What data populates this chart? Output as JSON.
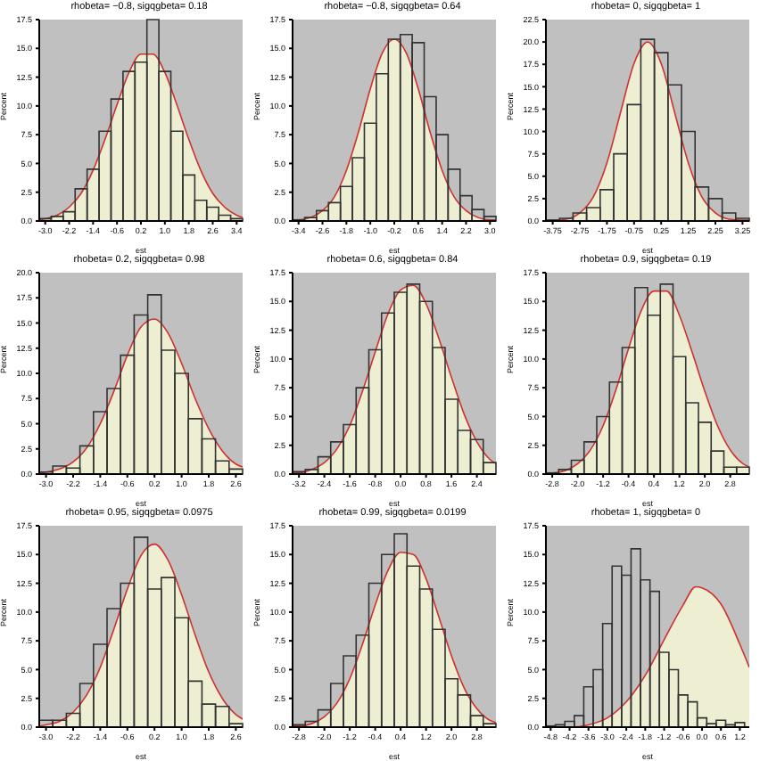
{
  "chart_data": [
    {
      "type": "histogram",
      "title": "rhobeta= −0.8, sigqgbeta= 0.18",
      "xlabel": "est",
      "ylabel": "Percent",
      "bins": [
        -3.2,
        -2.8,
        -2.4,
        -2,
        -1.6,
        -1.2,
        -0.8,
        -0.4,
        0,
        0.4,
        0.8,
        1.2,
        1.6,
        2,
        2.4,
        2.8,
        3.2,
        3.6
      ],
      "xlim": [
        -3.2,
        3.6
      ],
      "xticks": [
        {
          "value": -3,
          "label": "-3.0"
        },
        {
          "value": -2.2,
          "label": "-2.2"
        },
        {
          "value": -1.4,
          "label": "-1.4"
        },
        {
          "value": -0.6,
          "label": "-0.6"
        },
        {
          "value": 0.2,
          "label": "0.2"
        },
        {
          "value": 1,
          "label": "1.0"
        },
        {
          "value": 1.8,
          "label": "1.8"
        },
        {
          "value": 2.6,
          "label": "2.6"
        },
        {
          "value": 3.4,
          "label": "3.4"
        }
      ],
      "ylim": [
        0,
        17.5
      ],
      "yticks": [
        {
          "value": 0,
          "label": "0.0"
        },
        {
          "value": 2.5,
          "label": "2.5"
        },
        {
          "value": 5,
          "label": "5.0"
        },
        {
          "value": 7.5,
          "label": "7.5"
        },
        {
          "value": 10,
          "label": "10.0"
        },
        {
          "value": 12.5,
          "label": "12.5"
        },
        {
          "value": 15,
          "label": "15.0"
        },
        {
          "value": 17.5,
          "label": "17.5"
        }
      ],
      "series": [
        {
          "type": "area",
          "color": "#d03030",
          "x": [
            -3.2,
            -3,
            -2.6,
            -2.2,
            -1.8,
            -1.4,
            -1,
            -0.6,
            -0.2,
            0.2,
            0.6,
            1,
            1.4,
            1.8,
            2.2,
            2.6,
            3,
            3.4,
            3.6
          ],
          "values": [
            0.1,
            0.2,
            0.5,
            1.2,
            2.4,
            4.4,
            7.1,
            10.1,
            12.9,
            14.5,
            14.5,
            12.9,
            10.1,
            7.1,
            4.4,
            2.4,
            1.2,
            0.5,
            0.3
          ]
        },
        {
          "type": "histogram",
          "color": "#333333",
          "values": [
            0.2,
            0.4,
            0.8,
            2.8,
            4.5,
            7.8,
            10.6,
            13,
            13.8,
            17.5,
            13,
            7.8,
            4,
            1.8,
            1.2,
            0.5,
            0.2
          ]
        }
      ]
    },
    {
      "type": "histogram",
      "title": "rhobeta= −0.8, sigqgbeta= 0.64",
      "xlabel": "est",
      "ylabel": "Percent",
      "bins": [
        -3.6,
        -3.2,
        -2.8,
        -2.4,
        -2,
        -1.6,
        -1.2,
        -0.8,
        -0.4,
        0,
        0.4,
        0.8,
        1.2,
        1.6,
        2,
        2.4,
        2.8,
        3.2
      ],
      "xlim": [
        -3.6,
        3.2
      ],
      "xticks": [
        {
          "value": -3.4,
          "label": "-3.4"
        },
        {
          "value": -2.6,
          "label": "-2.6"
        },
        {
          "value": -1.8,
          "label": "-1.8"
        },
        {
          "value": -1,
          "label": "-1.0"
        },
        {
          "value": -0.2,
          "label": "-0.2"
        },
        {
          "value": 0.6,
          "label": "0.6"
        },
        {
          "value": 1.4,
          "label": "1.4"
        },
        {
          "value": 2.2,
          "label": "2.2"
        },
        {
          "value": 3,
          "label": "3.0"
        }
      ],
      "ylim": [
        0,
        17.5
      ],
      "yticks": [
        {
          "value": 0,
          "label": "0.0"
        },
        {
          "value": 2.5,
          "label": "2.5"
        },
        {
          "value": 5,
          "label": "5.0"
        },
        {
          "value": 7.5,
          "label": "7.5"
        },
        {
          "value": 10,
          "label": "10.0"
        },
        {
          "value": 12.5,
          "label": "12.5"
        },
        {
          "value": 15,
          "label": "15.0"
        },
        {
          "value": 17.5,
          "label": "17.5"
        }
      ],
      "series": [
        {
          "type": "area",
          "color": "#d03030",
          "x": [
            -3.6,
            -3.4,
            -3,
            -2.6,
            -2.2,
            -1.8,
            -1.4,
            -1,
            -0.6,
            -0.2,
            0.2,
            0.6,
            1,
            1.4,
            1.8,
            2.2,
            2.6,
            3,
            3.2
          ],
          "values": [
            0.1,
            0.1,
            0.3,
            0.9,
            2.1,
            4.4,
            7.7,
            11.5,
            14.6,
            15.8,
            14.6,
            11.5,
            7.7,
            4.4,
            2.1,
            0.9,
            0.3,
            0.1,
            0.1
          ]
        },
        {
          "type": "histogram",
          "color": "#333333",
          "values": [
            0.1,
            0.3,
            0.9,
            1.6,
            3,
            5.5,
            8.5,
            12.8,
            15.8,
            16.2,
            15.5,
            10.8,
            7.5,
            4.5,
            2.2,
            1,
            0.4
          ]
        }
      ]
    },
    {
      "type": "histogram",
      "title": "rhobeta= 0, sigqgbeta= 1",
      "xlabel": "est",
      "ylabel": "Percent",
      "bins": [
        -4,
        -3.5,
        -3,
        -2.5,
        -2,
        -1.5,
        -1,
        -0.5,
        0,
        0.5,
        1,
        1.5,
        2,
        2.5,
        3,
        3.5
      ],
      "xlim": [
        -4,
        3.5
      ],
      "xticks": [
        {
          "value": -3.75,
          "label": "-3.75"
        },
        {
          "value": -2.75,
          "label": "-2.75"
        },
        {
          "value": -1.75,
          "label": "-1.75"
        },
        {
          "value": -0.75,
          "label": "-0.75"
        },
        {
          "value": 0.25,
          "label": "0.25"
        },
        {
          "value": 1.25,
          "label": "1.25"
        },
        {
          "value": 2.25,
          "label": "2.25"
        },
        {
          "value": 3.25,
          "label": "3.25"
        }
      ],
      "ylim": [
        0,
        22.5
      ],
      "yticks": [
        {
          "value": 0,
          "label": "0.0"
        },
        {
          "value": 2.5,
          "label": "2.5"
        },
        {
          "value": 5,
          "label": "5.0"
        },
        {
          "value": 7.5,
          "label": "7.5"
        },
        {
          "value": 10,
          "label": "10.0"
        },
        {
          "value": 12.5,
          "label": "12.5"
        },
        {
          "value": 15,
          "label": "15.0"
        },
        {
          "value": 17.5,
          "label": "17.5"
        },
        {
          "value": 20,
          "label": "20.0"
        },
        {
          "value": 22.5,
          "label": "22.5"
        }
      ],
      "series": [
        {
          "type": "area",
          "color": "#d03030",
          "x": [
            -4,
            -3.75,
            -3.25,
            -2.75,
            -2.25,
            -1.75,
            -1.25,
            -0.75,
            -0.25,
            0.25,
            0.75,
            1.25,
            1.75,
            2.25,
            2.75,
            3.25,
            3.5
          ],
          "values": [
            0.1,
            0.1,
            0.2,
            0.9,
            2.7,
            6.5,
            12.1,
            17.6,
            20,
            17.6,
            12.1,
            6.5,
            2.7,
            0.9,
            0.2,
            0.1,
            0.1
          ]
        },
        {
          "type": "histogram",
          "color": "#333333",
          "values": [
            0.1,
            0.3,
            0.9,
            1.5,
            3.5,
            7.5,
            13,
            20.3,
            18.8,
            15.2,
            10,
            3.8,
            2.5,
            0.9,
            0.3
          ]
        }
      ]
    },
    {
      "type": "histogram",
      "title": "rhobeta= 0.2, sigqgbeta= 0.98",
      "xlabel": "est",
      "ylabel": "Percent",
      "bins": [
        -3.2,
        -2.8,
        -2.4,
        -2,
        -1.6,
        -1.2,
        -0.8,
        -0.4,
        0,
        0.4,
        0.8,
        1.2,
        1.6,
        2,
        2.4,
        2.8
      ],
      "xlim": [
        -3.2,
        2.8
      ],
      "xticks": [
        {
          "value": -3,
          "label": "-3.0"
        },
        {
          "value": -2.2,
          "label": "-2.2"
        },
        {
          "value": -1.4,
          "label": "-1.4"
        },
        {
          "value": -0.6,
          "label": "-0.6"
        },
        {
          "value": 0.2,
          "label": "0.2"
        },
        {
          "value": 1,
          "label": "1.0"
        },
        {
          "value": 1.8,
          "label": "1.8"
        },
        {
          "value": 2.6,
          "label": "2.6"
        }
      ],
      "ylim": [
        0,
        20
      ],
      "yticks": [
        {
          "value": 0,
          "label": "0.0"
        },
        {
          "value": 2.5,
          "label": "2.5"
        },
        {
          "value": 5,
          "label": "5.0"
        },
        {
          "value": 7.5,
          "label": "7.5"
        },
        {
          "value": 10,
          "label": "10.0"
        },
        {
          "value": 12.5,
          "label": "12.5"
        },
        {
          "value": 15,
          "label": "15.0"
        },
        {
          "value": 17.5,
          "label": "17.5"
        },
        {
          "value": 20,
          "label": "20.0"
        }
      ],
      "series": [
        {
          "type": "area",
          "color": "#d03030",
          "x": [
            -3.2,
            -3,
            -2.6,
            -2.2,
            -1.8,
            -1.4,
            -1,
            -0.6,
            -0.2,
            0.2,
            0.6,
            1,
            1.4,
            1.8,
            2.2,
            2.6,
            2.8
          ],
          "values": [
            0.1,
            0.2,
            0.5,
            1.2,
            2.6,
            5,
            8.2,
            11.8,
            14.6,
            15.4,
            14,
            11,
            7.5,
            4.5,
            2.3,
            1,
            0.7
          ]
        },
        {
          "type": "histogram",
          "color": "#333333",
          "values": [
            0.2,
            0.8,
            0.6,
            2.8,
            6.2,
            8.5,
            11.8,
            15.8,
            17.8,
            12.3,
            10,
            5.5,
            3.5,
            1.3,
            0.5
          ]
        }
      ]
    },
    {
      "type": "histogram",
      "title": "rhobeta= 0.6, sigqgbeta= 0.84",
      "xlabel": "est",
      "ylabel": "Percent",
      "bins": [
        -3.4,
        -3,
        -2.6,
        -2.2,
        -1.8,
        -1.4,
        -1,
        -0.6,
        -0.2,
        0.2,
        0.6,
        1,
        1.4,
        1.8,
        2.2,
        2.6,
        3
      ],
      "xlim": [
        -3.4,
        3
      ],
      "xticks": [
        {
          "value": -3.2,
          "label": "-3.2"
        },
        {
          "value": -2.4,
          "label": "-2.4"
        },
        {
          "value": -1.6,
          "label": "-1.6"
        },
        {
          "value": -0.8,
          "label": "-0.8"
        },
        {
          "value": 0,
          "label": "0.0"
        },
        {
          "value": 0.8,
          "label": "0.8"
        },
        {
          "value": 1.6,
          "label": "1.6"
        },
        {
          "value": 2.4,
          "label": "2.4"
        }
      ],
      "ylim": [
        0,
        17.5
      ],
      "yticks": [
        {
          "value": 0,
          "label": "0.0"
        },
        {
          "value": 2.5,
          "label": "2.5"
        },
        {
          "value": 5,
          "label": "5.0"
        },
        {
          "value": 7.5,
          "label": "7.5"
        },
        {
          "value": 10,
          "label": "10.0"
        },
        {
          "value": 12.5,
          "label": "12.5"
        },
        {
          "value": 15,
          "label": "15.0"
        },
        {
          "value": 17.5,
          "label": "17.5"
        }
      ],
      "series": [
        {
          "type": "area",
          "color": "#d03030",
          "x": [
            -3.4,
            -3.2,
            -2.8,
            -2.4,
            -2,
            -1.6,
            -1.2,
            -0.8,
            -0.4,
            0,
            0.4,
            0.8,
            1.2,
            1.6,
            2,
            2.4,
            2.8,
            3
          ],
          "values": [
            0.1,
            0.1,
            0.4,
            1,
            2.2,
            4.2,
            7.2,
            10.6,
            13.9,
            16,
            16.4,
            14.8,
            11.8,
            8.4,
            5.2,
            2.8,
            1.3,
            0.9
          ]
        },
        {
          "type": "histogram",
          "color": "#333333",
          "values": [
            0.2,
            0.4,
            1.5,
            2.8,
            4.3,
            7.5,
            10.8,
            14,
            15.8,
            16.5,
            15,
            11,
            6.5,
            3.8,
            3,
            1
          ]
        }
      ]
    },
    {
      "type": "histogram",
      "title": "rhobeta= 0.9, sigqgbeta= 0.19",
      "xlabel": "est",
      "ylabel": "Percent",
      "bins": [
        -3,
        -2.6,
        -2.2,
        -1.8,
        -1.4,
        -1,
        -0.6,
        -0.2,
        0.2,
        0.6,
        1,
        1.4,
        1.8,
        2.2,
        2.6,
        3,
        3.4
      ],
      "xlim": [
        -3,
        3.4
      ],
      "xticks": [
        {
          "value": -2.8,
          "label": "-2.8"
        },
        {
          "value": -2,
          "label": "-2.0"
        },
        {
          "value": -1.2,
          "label": "-1.2"
        },
        {
          "value": -0.4,
          "label": "-0.4"
        },
        {
          "value": 0.4,
          "label": "0.4"
        },
        {
          "value": 1.2,
          "label": "1.2"
        },
        {
          "value": 2,
          "label": "2.0"
        },
        {
          "value": 2.8,
          "label": "2.8"
        }
      ],
      "ylim": [
        0,
        17.5
      ],
      "yticks": [
        {
          "value": 0,
          "label": "0.0"
        },
        {
          "value": 2.5,
          "label": "2.5"
        },
        {
          "value": 5,
          "label": "5.0"
        },
        {
          "value": 7.5,
          "label": "7.5"
        },
        {
          "value": 10,
          "label": "10.0"
        },
        {
          "value": 12.5,
          "label": "12.5"
        },
        {
          "value": 15,
          "label": "15.0"
        },
        {
          "value": 17.5,
          "label": "17.5"
        }
      ],
      "series": [
        {
          "type": "area",
          "color": "#d03030",
          "x": [
            -3,
            -2.8,
            -2.4,
            -2,
            -1.6,
            -1.2,
            -0.8,
            -0.4,
            0,
            0.4,
            0.8,
            1.2,
            1.6,
            2,
            2.4,
            2.8,
            3.2,
            3.4
          ],
          "values": [
            0.1,
            0.1,
            0.3,
            0.9,
            2.1,
            4.2,
            7.3,
            10.9,
            14.2,
            15.9,
            15.9,
            13.8,
            10.6,
            7.2,
            4.2,
            2.1,
            0.9,
            0.6
          ]
        },
        {
          "type": "histogram",
          "color": "#333333",
          "values": [
            0.1,
            0.4,
            1.2,
            2.8,
            5,
            8,
            11,
            16.2,
            13.8,
            16.5,
            10.2,
            6.2,
            4.5,
            2,
            0.6,
            0.6
          ]
        }
      ]
    },
    {
      "type": "histogram",
      "title": "rhobeta= 0.95, sigqgbeta= 0.0975",
      "xlabel": "est",
      "ylabel": "Percent",
      "bins": [
        -3.2,
        -2.8,
        -2.4,
        -2,
        -1.6,
        -1.2,
        -0.8,
        -0.4,
        0,
        0.4,
        0.8,
        1.2,
        1.6,
        2,
        2.4,
        2.8
      ],
      "xlim": [
        -3.2,
        2.8
      ],
      "xticks": [
        {
          "value": -3,
          "label": "-3.0"
        },
        {
          "value": -2.2,
          "label": "-2.2"
        },
        {
          "value": -1.4,
          "label": "-1.4"
        },
        {
          "value": -0.6,
          "label": "-0.6"
        },
        {
          "value": 0.2,
          "label": "0.2"
        },
        {
          "value": 1,
          "label": "1.0"
        },
        {
          "value": 1.8,
          "label": "1.8"
        },
        {
          "value": 2.6,
          "label": "2.6"
        }
      ],
      "ylim": [
        0,
        17.5
      ],
      "yticks": [
        {
          "value": 0,
          "label": "0.0"
        },
        {
          "value": 2.5,
          "label": "2.5"
        },
        {
          "value": 5,
          "label": "5.0"
        },
        {
          "value": 7.5,
          "label": "7.5"
        },
        {
          "value": 10,
          "label": "10.0"
        },
        {
          "value": 12.5,
          "label": "12.5"
        },
        {
          "value": 15,
          "label": "15.0"
        },
        {
          "value": 17.5,
          "label": "17.5"
        }
      ],
      "series": [
        {
          "type": "area",
          "color": "#d03030",
          "x": [
            -3.2,
            -3,
            -2.6,
            -2.2,
            -1.8,
            -1.4,
            -1,
            -0.6,
            -0.2,
            0.2,
            0.6,
            1,
            1.4,
            1.8,
            2.2,
            2.6,
            2.8
          ],
          "values": [
            0.1,
            0.2,
            0.5,
            1.3,
            2.8,
            5.2,
            8.5,
            12,
            14.9,
            15.9,
            14.5,
            11.5,
            8,
            4.8,
            2.5,
            1.1,
            0.7
          ]
        },
        {
          "type": "histogram",
          "color": "#333333",
          "values": [
            0.6,
            0.6,
            1.2,
            3.8,
            7.2,
            10.3,
            12.5,
            16.5,
            12,
            13,
            9.5,
            4,
            2,
            1.8,
            0.3
          ]
        }
      ]
    },
    {
      "type": "histogram",
      "title": "rhobeta= 0.99, sigqgbeta= 0.0199",
      "xlabel": "est",
      "ylabel": "Percent",
      "bins": [
        -3,
        -2.6,
        -2.2,
        -1.8,
        -1.4,
        -1,
        -0.6,
        -0.2,
        0.2,
        0.6,
        1,
        1.4,
        1.8,
        2.2,
        2.6,
        3,
        3.4
      ],
      "xlim": [
        -3,
        3.4
      ],
      "xticks": [
        {
          "value": -2.8,
          "label": "-2.8"
        },
        {
          "value": -2,
          "label": "-2.0"
        },
        {
          "value": -1.2,
          "label": "-1.2"
        },
        {
          "value": -0.4,
          "label": "-0.4"
        },
        {
          "value": 0.4,
          "label": "0.4"
        },
        {
          "value": 1.2,
          "label": "1.2"
        },
        {
          "value": 2,
          "label": "2.0"
        },
        {
          "value": 2.8,
          "label": "2.8"
        }
      ],
      "ylim": [
        0,
        17.5
      ],
      "yticks": [
        {
          "value": 0,
          "label": "0.0"
        },
        {
          "value": 2.5,
          "label": "2.5"
        },
        {
          "value": 5,
          "label": "5.0"
        },
        {
          "value": 7.5,
          "label": "7.5"
        },
        {
          "value": 10,
          "label": "10.0"
        },
        {
          "value": 12.5,
          "label": "12.5"
        },
        {
          "value": 15,
          "label": "15.0"
        },
        {
          "value": 17.5,
          "label": "17.5"
        }
      ],
      "series": [
        {
          "type": "area",
          "color": "#d03030",
          "x": [
            -3,
            -2.8,
            -2.4,
            -2,
            -1.6,
            -1.2,
            -0.8,
            -0.4,
            0,
            0.4,
            0.8,
            1.2,
            1.6,
            2,
            2.4,
            2.8,
            3.2,
            3.4
          ],
          "values": [
            0.1,
            0.1,
            0.3,
            0.9,
            2.1,
            4.2,
            7.2,
            10.6,
            13.6,
            15.2,
            15,
            12.9,
            9.6,
            6.2,
            3.4,
            1.6,
            0.6,
            0.4
          ]
        },
        {
          "type": "histogram",
          "color": "#333333",
          "values": [
            0.2,
            0.5,
            1.5,
            3.8,
            6.2,
            8,
            12.5,
            15,
            16.8,
            14,
            12,
            8.5,
            4.2,
            2.8,
            1,
            0.3
          ]
        }
      ]
    },
    {
      "type": "histogram",
      "title": "rhobeta= 1, sigqgbeta= 0",
      "xlabel": "est",
      "ylabel": "Percent",
      "bins": [
        -4.95,
        -4.65,
        -4.35,
        -4.05,
        -3.75,
        -3.45,
        -3.15,
        -2.85,
        -2.55,
        -2.25,
        -1.95,
        -1.65,
        -1.35,
        -1.05,
        -0.75,
        -0.45,
        -0.15,
        0.15,
        0.45,
        0.75,
        1.05,
        1.35
      ],
      "xlim": [
        -4.95,
        1.5
      ],
      "xticks": [
        {
          "value": -4.8,
          "label": "-4.8"
        },
        {
          "value": -4.2,
          "label": "-4.2"
        },
        {
          "value": -3.6,
          "label": "-3.6"
        },
        {
          "value": -3,
          "label": "-3.0"
        },
        {
          "value": -2.4,
          "label": "-2.4"
        },
        {
          "value": -1.8,
          "label": "-1.8"
        },
        {
          "value": -1.2,
          "label": "-1.2"
        },
        {
          "value": -0.6,
          "label": "-0.6"
        },
        {
          "value": 0,
          "label": "0.0"
        },
        {
          "value": 0.6,
          "label": "0.6"
        },
        {
          "value": 1.2,
          "label": "1.2"
        }
      ],
      "ylim": [
        0,
        17.5
      ],
      "yticks": [
        {
          "value": 0,
          "label": "0.0"
        },
        {
          "value": 2.5,
          "label": "2.5"
        },
        {
          "value": 5,
          "label": "5.0"
        },
        {
          "value": 7.5,
          "label": "7.5"
        },
        {
          "value": 10,
          "label": "10.0"
        },
        {
          "value": 12.5,
          "label": "12.5"
        },
        {
          "value": 15,
          "label": "15.0"
        },
        {
          "value": 17.5,
          "label": "17.5"
        }
      ],
      "series": [
        {
          "type": "area",
          "color": "#d03030",
          "x": [
            -4.95,
            -4.2,
            -3.6,
            -3,
            -2.4,
            -1.8,
            -1.2,
            -0.6,
            -0.2,
            0,
            0.6,
            1.2,
            1.5
          ],
          "values": [
            0,
            0,
            0.2,
            0.8,
            2.2,
            4.5,
            7.6,
            10.6,
            12.2,
            12.1,
            10.7,
            7.2,
            5.2
          ]
        },
        {
          "type": "histogram",
          "color": "#333333",
          "values": [
            0.1,
            0.2,
            0.5,
            1,
            3.5,
            5,
            9,
            14,
            13.2,
            15.5,
            12.8,
            11.8,
            6.5,
            5,
            2.8,
            2.2,
            0.8,
            0.3,
            0.6,
            0.2,
            0.4
          ]
        }
      ]
    }
  ]
}
